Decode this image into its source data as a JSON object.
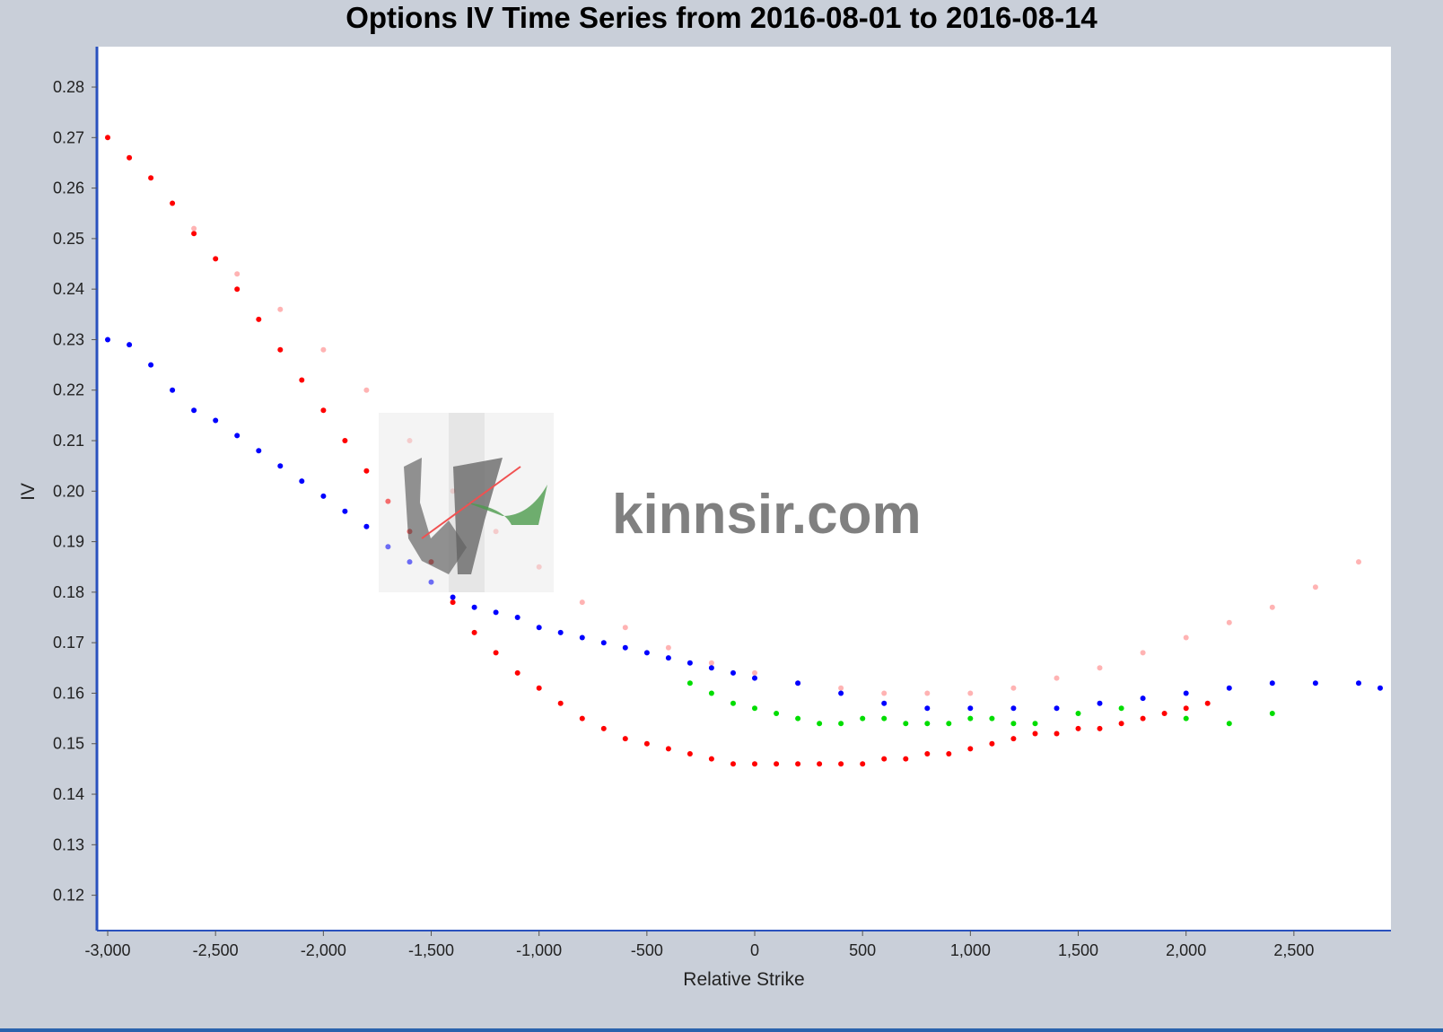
{
  "chart_data": {
    "type": "scatter",
    "title": "Options IV Time Series from 2016-08-01 to 2016-08-14",
    "xlabel": "Relative Strike",
    "ylabel": "IV",
    "xlim": [
      -3050,
      2950
    ],
    "ylim": [
      0.113,
      0.288
    ],
    "x_ticks": [
      -3000,
      -2500,
      -2000,
      -1500,
      -1000,
      -500,
      0,
      500,
      1000,
      1500,
      2000,
      2500
    ],
    "x_tick_labels": [
      "-3,000",
      "-2,500",
      "-2,000",
      "-1,500",
      "-1,000",
      "-500",
      "0",
      "500",
      "1,000",
      "1,500",
      "2,000",
      "2,500"
    ],
    "y_ticks": [
      0.12,
      0.13,
      0.14,
      0.15,
      0.16,
      0.17,
      0.18,
      0.19,
      0.2,
      0.21,
      0.22,
      0.23,
      0.24,
      0.25,
      0.26,
      0.27,
      0.28
    ],
    "y_tick_labels": [
      "0.12",
      "0.13",
      "0.14",
      "0.15",
      "0.16",
      "0.17",
      "0.18",
      "0.19",
      "0.20",
      "0.21",
      "0.22",
      "0.23",
      "0.24",
      "0.25",
      "0.26",
      "0.27",
      "0.28"
    ],
    "grid": false,
    "legend": "none",
    "series": [
      {
        "color": "#ff0000",
        "x": [
          -3000,
          -2900,
          -2800,
          -2700,
          -2600,
          -2500,
          -2400,
          -2300,
          -2200,
          -2100,
          -2000,
          -1900,
          -1800,
          -1700,
          -1600,
          -1500,
          -1400,
          -1300,
          -1200,
          -1100,
          -1000,
          -900,
          -800,
          -700,
          -600,
          -500,
          -400,
          -300,
          -200,
          -100,
          0,
          100,
          200,
          300,
          400,
          500,
          600,
          700,
          800,
          900,
          1000,
          1100,
          1200,
          1300,
          1400,
          1500,
          1600,
          1700,
          1800,
          1900,
          2000,
          2100
        ],
        "y": [
          0.27,
          0.266,
          0.262,
          0.257,
          0.251,
          0.246,
          0.24,
          0.234,
          0.228,
          0.222,
          0.216,
          0.21,
          0.204,
          0.198,
          0.192,
          0.186,
          0.178,
          0.172,
          0.168,
          0.164,
          0.161,
          0.158,
          0.155,
          0.153,
          0.151,
          0.15,
          0.149,
          0.148,
          0.147,
          0.146,
          0.146,
          0.146,
          0.146,
          0.146,
          0.146,
          0.146,
          0.147,
          0.147,
          0.148,
          0.148,
          0.149,
          0.15,
          0.151,
          0.152,
          0.152,
          0.153,
          0.153,
          0.154,
          0.155,
          0.156,
          0.157,
          0.158
        ]
      },
      {
        "color": "#ffb3b3",
        "x": [
          -2600,
          -2400,
          -2200,
          -2000,
          -1800,
          -1600,
          -1400,
          -1200,
          -1000,
          -800,
          -600,
          -400,
          -200,
          0,
          200,
          400,
          600,
          800,
          1000,
          1200,
          1400,
          1600,
          1800,
          2000,
          2200,
          2400,
          2600,
          2800
        ],
        "y": [
          0.252,
          0.243,
          0.236,
          0.228,
          0.22,
          0.21,
          0.2,
          0.192,
          0.185,
          0.178,
          0.173,
          0.169,
          0.166,
          0.164,
          0.162,
          0.161,
          0.16,
          0.16,
          0.16,
          0.161,
          0.163,
          0.165,
          0.168,
          0.171,
          0.174,
          0.177,
          0.181,
          0.186
        ]
      },
      {
        "color": "#0000ff",
        "x": [
          -3000,
          -2900,
          -2800,
          -2700,
          -2600,
          -2500,
          -2400,
          -2300,
          -2200,
          -2100,
          -2000,
          -1900,
          -1800,
          -1700,
          -1600,
          -1500,
          -1400,
          -1300,
          -1200,
          -1100,
          -1000,
          -900,
          -800,
          -700,
          -600,
          -500,
          -400,
          -300,
          -200,
          -100,
          0,
          200,
          400,
          600,
          800,
          1000,
          1200,
          1400,
          1600,
          1800,
          2000,
          2200,
          2400,
          2600,
          2800,
          2900
        ],
        "y": [
          0.23,
          0.229,
          0.225,
          0.22,
          0.216,
          0.214,
          0.211,
          0.208,
          0.205,
          0.202,
          0.199,
          0.196,
          0.193,
          0.189,
          0.186,
          0.182,
          0.179,
          0.177,
          0.176,
          0.175,
          0.173,
          0.172,
          0.171,
          0.17,
          0.169,
          0.168,
          0.167,
          0.166,
          0.165,
          0.164,
          0.163,
          0.162,
          0.16,
          0.158,
          0.157,
          0.157,
          0.157,
          0.157,
          0.158,
          0.159,
          0.16,
          0.161,
          0.162,
          0.162,
          0.162,
          0.161
        ]
      },
      {
        "color": "#00dd00",
        "x": [
          -300,
          -200,
          -100,
          0,
          100,
          200,
          300,
          400,
          500,
          600,
          700,
          800,
          900,
          1000,
          1100,
          1200,
          1300,
          1500,
          1700,
          2000,
          2200,
          2400
        ],
        "y": [
          0.162,
          0.16,
          0.158,
          0.157,
          0.156,
          0.155,
          0.154,
          0.154,
          0.155,
          0.155,
          0.154,
          0.154,
          0.154,
          0.155,
          0.155,
          0.154,
          0.154,
          0.156,
          0.157,
          0.155,
          0.154,
          0.156
        ]
      }
    ]
  },
  "watermark": {
    "text": "kinnsir.com"
  }
}
